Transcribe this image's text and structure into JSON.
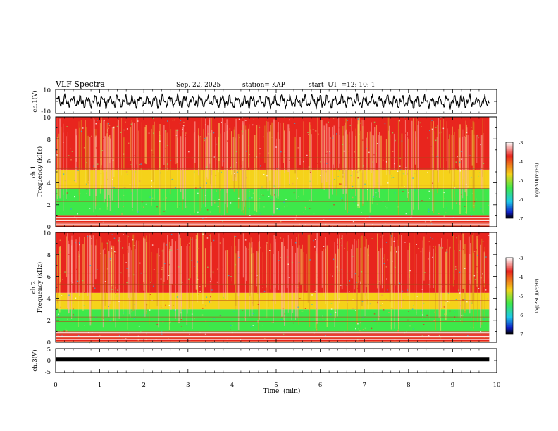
{
  "header": {
    "title": "VLF Spectra",
    "date": "Sep. 22, 2025",
    "station": "station= KAP",
    "start_label": "start  UT  =",
    "start_time": "12: 10: 1"
  },
  "colors": {
    "spectrum_high": "#e8251e",
    "spectrum_mid": "#f5d21a",
    "spectrum_low": "#3ee84a",
    "trace": "#000000"
  },
  "chart_data": [
    {
      "type": "line",
      "panel": "ch1-waveform",
      "ylabel": "ch.1(V)",
      "ylim": [
        -10,
        10
      ],
      "yticklabels": [
        "10",
        "-10"
      ],
      "xlim": [
        0,
        10
      ],
      "data_extent_min": 9.83,
      "trace_mean": 0,
      "trace_amplitude": 7
    },
    {
      "type": "heatmap",
      "panel": "ch1-spectrogram",
      "ylabel": "ch.1\nFrequency (kHz)",
      "ylabel_lines": [
        "ch.1",
        "Frequency (kHz)"
      ],
      "ylim": [
        0,
        10
      ],
      "yticklabels": [
        "0",
        "2",
        "4",
        "6",
        "8",
        "10"
      ],
      "xlim": [
        0,
        10
      ],
      "data_extent_min": 9.83,
      "bands_khz": [
        {
          "from": 0,
          "to": 1,
          "level": "high"
        },
        {
          "from": 1,
          "to": 3.5,
          "level": "low"
        },
        {
          "from": 3.5,
          "to": 5.2,
          "level": "mid"
        },
        {
          "from": 5.2,
          "to": 10,
          "level": "high"
        }
      ],
      "colorbar": {
        "label": "log(PSD)(V²/Hz)",
        "range": [
          -7,
          -3
        ],
        "ticklabels": [
          "-3",
          "-4",
          "-5",
          "-6",
          "-7"
        ]
      }
    },
    {
      "type": "heatmap",
      "panel": "ch2-spectrogram",
      "ylabel": "ch.2\nFrequency (kHz)",
      "ylabel_lines": [
        "ch.2",
        "Frequency (kHz)"
      ],
      "ylim": [
        0,
        10
      ],
      "yticklabels": [
        "0",
        "2",
        "4",
        "6",
        "8",
        "10"
      ],
      "xlim": [
        0,
        10
      ],
      "data_extent_min": 9.83,
      "bands_khz": [
        {
          "from": 0,
          "to": 1,
          "level": "high"
        },
        {
          "from": 1,
          "to": 3,
          "level": "low"
        },
        {
          "from": 3,
          "to": 4.5,
          "level": "mid"
        },
        {
          "from": 4.5,
          "to": 10,
          "level": "high"
        }
      ],
      "colorbar": {
        "label": "log(PSD)(V²/Hz)",
        "range": [
          -7,
          -3
        ],
        "ticklabels": [
          "-3",
          "-4",
          "-5",
          "-6",
          "-7"
        ]
      }
    },
    {
      "type": "line",
      "panel": "ch3-waveform",
      "ylabel": "ch.3(V)",
      "ylim": [
        -5,
        5
      ],
      "yticklabels": [
        "5",
        "0",
        "-5"
      ],
      "xlim": [
        0,
        10
      ],
      "data_extent_min": 9.83,
      "trace_mean": 0.5,
      "trace_amplitude": 0.5
    }
  ],
  "x_axis": {
    "label": "Time  (min)",
    "range": [
      0,
      10
    ],
    "ticklabels": [
      "0",
      "1",
      "2",
      "3",
      "4",
      "5",
      "6",
      "7",
      "8",
      "9",
      "10"
    ]
  }
}
